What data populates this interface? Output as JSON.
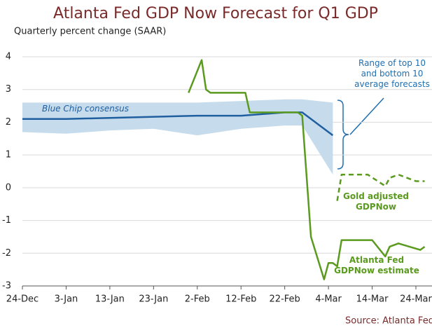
{
  "chart_data": {
    "type": "line",
    "title": "Atlanta Fed GDP Now Forecast for Q1 GDP",
    "y_label": "Quarterly percent change (SAAR)",
    "source": "Source: Atlanta Fed",
    "xlim": [
      0,
      93
    ],
    "xticks": [
      {
        "value": 0,
        "label": "24-Dec"
      },
      {
        "value": 10,
        "label": "3-Jan"
      },
      {
        "value": 20,
        "label": "13-Jan"
      },
      {
        "value": 30,
        "label": "23-Jan"
      },
      {
        "value": 40,
        "label": "2-Feb"
      },
      {
        "value": 50,
        "label": "12-Feb"
      },
      {
        "value": 60,
        "label": "22-Feb"
      },
      {
        "value": 70,
        "label": "4-Mar"
      },
      {
        "value": 80,
        "label": "14-Mar"
      },
      {
        "value": 90,
        "label": "24-Mar"
      }
    ],
    "ylim": [
      -3,
      4
    ],
    "yticks": [
      -3,
      -2,
      -1,
      0,
      1,
      2,
      3,
      4
    ],
    "grid": true,
    "bands": [
      {
        "name": "Range of top 10 and bottom 10 average forecasts",
        "color": "#c6dcec",
        "x": [
          0,
          10,
          20,
          30,
          40,
          50,
          60,
          64,
          71
        ],
        "upper": [
          2.6,
          2.6,
          2.6,
          2.6,
          2.6,
          2.65,
          2.7,
          2.7,
          2.6
        ],
        "lower": [
          1.7,
          1.65,
          1.75,
          1.8,
          1.6,
          1.8,
          1.9,
          1.9,
          0.4
        ]
      }
    ],
    "series": [
      {
        "name": "Blue Chip consensus",
        "color": "#1f5f9f",
        "dashed": false,
        "x": [
          0,
          10,
          40,
          50,
          60,
          64,
          71
        ],
        "values": [
          2.1,
          2.1,
          2.2,
          2.2,
          2.3,
          2.3,
          1.6
        ]
      },
      {
        "name": "Gold adjusted GDPNow",
        "color": "#5a9a1e",
        "dashed": true,
        "x": [
          72,
          73,
          79,
          83,
          84,
          86,
          90,
          92
        ],
        "values": [
          -0.4,
          0.4,
          0.4,
          0.05,
          0.3,
          0.4,
          0.2,
          0.2
        ]
      },
      {
        "name": "Atlanta Fed GDPNow estimate",
        "color": "#5a9a1e",
        "dashed": false,
        "x": [
          38,
          41,
          42,
          43,
          51,
          52,
          63,
          64,
          66,
          69,
          70,
          71,
          72,
          73,
          80,
          83,
          84,
          86,
          91,
          92
        ],
        "values": [
          2.9,
          3.9,
          3.0,
          2.9,
          2.9,
          2.3,
          2.3,
          2.2,
          -1.5,
          -2.8,
          -2.3,
          -2.3,
          -2.4,
          -1.6,
          -1.6,
          -2.1,
          -1.8,
          -1.7,
          -1.9,
          -1.8
        ]
      }
    ]
  }
}
